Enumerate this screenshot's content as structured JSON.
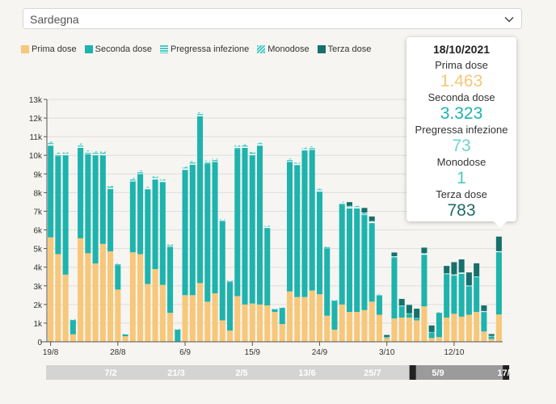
{
  "selector": {
    "value": "Sardegna"
  },
  "legend": [
    {
      "label": "Prima dose",
      "color": "#f7c77a",
      "pattern": "solid"
    },
    {
      "label": "Seconda dose",
      "color": "#1eb3ad",
      "pattern": "solid"
    },
    {
      "label": "Pregressa infezione",
      "color": "#4cc8c2",
      "pattern": "lines"
    },
    {
      "label": "Monodose",
      "color": "#4cc8c2",
      "pattern": "diagonal"
    },
    {
      "label": "Terza dose",
      "color": "#16706c",
      "pattern": "solid"
    }
  ],
  "tooltip": {
    "date": "18/10/2021",
    "items": [
      {
        "label": "Prima dose",
        "value": "1.463",
        "color": "#f7c77a"
      },
      {
        "label": "Seconda dose",
        "value": "3.323",
        "color": "#1eb3ad"
      },
      {
        "label": "Pregressa infezione",
        "value": "73",
        "color": "#6fd3cd"
      },
      {
        "label": "Monodose",
        "value": "1",
        "color": "#4cc8c2"
      },
      {
        "label": "Terza dose",
        "value": "783",
        "color": "#1f6b68"
      }
    ]
  },
  "timeline": {
    "labels": [
      "7/2",
      "21/3",
      "2/5",
      "13/6",
      "25/7",
      "5/9",
      "17/"
    ],
    "window": [
      0.79,
      0.995
    ]
  },
  "chart_data": {
    "type": "bar",
    "stacked": true,
    "ylim": [
      0,
      13000
    ],
    "yticks": [
      "0",
      "1k",
      "2k",
      "3k",
      "4k",
      "5k",
      "6k",
      "7k",
      "8k",
      "9k",
      "10k",
      "11k",
      "12k",
      "13k"
    ],
    "xticks": [
      {
        "index": 0,
        "label": "19/8"
      },
      {
        "index": 9,
        "label": "28/8"
      },
      {
        "index": 18,
        "label": "6/9"
      },
      {
        "index": 27,
        "label": "15/9"
      },
      {
        "index": 36,
        "label": "24/9"
      },
      {
        "index": 45,
        "label": "3/10"
      },
      {
        "index": 54,
        "label": "12/10"
      }
    ],
    "categories": [
      "19/8",
      "20/8",
      "21/8",
      "22/8",
      "23/8",
      "24/8",
      "25/8",
      "26/8",
      "27/8",
      "28/8",
      "29/8",
      "30/8",
      "31/8",
      "1/9",
      "2/9",
      "3/9",
      "4/9",
      "5/9",
      "6/9",
      "7/9",
      "8/9",
      "9/9",
      "10/9",
      "11/9",
      "12/9",
      "13/9",
      "14/9",
      "15/9",
      "16/9",
      "17/9",
      "18/9",
      "19/9",
      "20/9",
      "21/9",
      "22/9",
      "23/9",
      "24/9",
      "25/9",
      "26/9",
      "27/9",
      "28/9",
      "29/9",
      "30/9",
      "1/10",
      "2/10",
      "3/10",
      "4/10",
      "5/10",
      "6/10",
      "7/10",
      "8/10",
      "9/10",
      "10/10",
      "11/10",
      "12/10",
      "13/10",
      "14/10",
      "15/10",
      "16/10",
      "17/10",
      "18/10"
    ],
    "series": [
      {
        "name": "Prima dose",
        "values": [
          5600,
          4700,
          3600,
          400,
          5550,
          4750,
          4200,
          5250,
          4850,
          2800,
          300,
          4800,
          4700,
          3100,
          3900,
          3050,
          1550,
          0,
          2500,
          2500,
          3150,
          2150,
          2600,
          1150,
          600,
          2450,
          2000,
          2050,
          2000,
          1950,
          1600,
          950,
          2700,
          2400,
          2400,
          2750,
          2550,
          1400,
          650,
          2000,
          1600,
          1600,
          1700,
          2150,
          1450,
          200,
          1250,
          1300,
          1300,
          1150,
          1900,
          200,
          250,
          1300,
          1500,
          1350,
          1450,
          1600,
          550,
          150,
          1463
        ]
      },
      {
        "name": "Seconda dose",
        "values": [
          4900,
          5250,
          6400,
          750,
          4850,
          5300,
          5800,
          4750,
          3350,
          1300,
          100,
          3800,
          4300,
          5050,
          4800,
          5500,
          3550,
          650,
          6700,
          7000,
          8950,
          7400,
          7050,
          5300,
          2600,
          7900,
          8400,
          7950,
          8500,
          4150,
          150,
          850,
          6950,
          7050,
          7850,
          7550,
          5500,
          3600,
          1550,
          5350,
          5550,
          5550,
          5100,
          4200,
          1050,
          50,
          3250,
          600,
          200,
          100,
          2750,
          300,
          1300,
          2300,
          2050,
          2300,
          1500,
          1850,
          1050,
          150,
          3323
        ]
      },
      {
        "name": "Pregressa infezione",
        "values": [
          180,
          150,
          120,
          50,
          170,
          160,
          160,
          150,
          120,
          80,
          20,
          140,
          140,
          120,
          130,
          130,
          90,
          20,
          140,
          140,
          150,
          130,
          130,
          100,
          50,
          140,
          140,
          140,
          140,
          100,
          20,
          40,
          130,
          130,
          120,
          140,
          120,
          80,
          40,
          120,
          110,
          110,
          100,
          90,
          50,
          10,
          70,
          40,
          20,
          20,
          80,
          20,
          30,
          60,
          60,
          60,
          60,
          50,
          40,
          10,
          73
        ]
      },
      {
        "name": "Monodose",
        "values": [
          60,
          50,
          40,
          10,
          60,
          50,
          50,
          50,
          40,
          30,
          5,
          50,
          50,
          40,
          40,
          40,
          30,
          5,
          50,
          50,
          50,
          40,
          40,
          30,
          20,
          50,
          50,
          40,
          40,
          30,
          5,
          10,
          40,
          40,
          40,
          40,
          40,
          20,
          10,
          40,
          30,
          30,
          30,
          30,
          20,
          5,
          20,
          10,
          5,
          5,
          20,
          5,
          5,
          10,
          10,
          10,
          10,
          10,
          10,
          5,
          1
        ]
      },
      {
        "name": "Terza dose",
        "values": [
          0,
          0,
          0,
          0,
          0,
          0,
          0,
          0,
          0,
          0,
          0,
          0,
          0,
          0,
          0,
          0,
          0,
          0,
          0,
          0,
          0,
          0,
          0,
          0,
          0,
          0,
          0,
          0,
          0,
          0,
          0,
          0,
          0,
          0,
          0,
          0,
          0,
          0,
          0,
          0,
          200,
          0,
          250,
          250,
          0,
          100,
          200,
          350,
          450,
          500,
          300,
          350,
          0,
          400,
          650,
          700,
          700,
          700,
          300,
          100,
          783
        ]
      }
    ]
  }
}
